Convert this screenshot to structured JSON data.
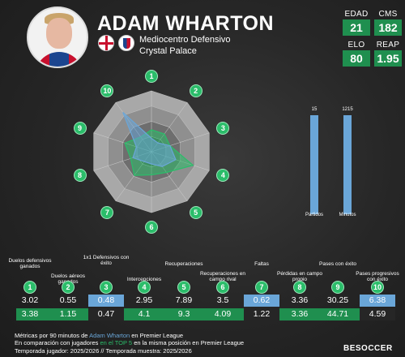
{
  "player": {
    "name": "ADAM WHARTON",
    "position": "Mediocentro Defensivo",
    "club": "Crystal Palace"
  },
  "header_stats": [
    {
      "label": "EDAD",
      "value": "21"
    },
    {
      "label": "CMS",
      "value": "182"
    },
    {
      "label": "ELO",
      "value": "80"
    },
    {
      "label": "REAP",
      "value": "1.95"
    }
  ],
  "radar": {
    "axes": [
      "1",
      "2",
      "3",
      "4",
      "5",
      "6",
      "7",
      "8",
      "9",
      "10"
    ],
    "player_values": [
      0.22,
      0.18,
      0.32,
      0.42,
      0.3,
      0.2,
      0.2,
      0.32,
      0.26,
      0.8
    ],
    "comparison_values": [
      0.36,
      0.36,
      0.32,
      0.72,
      0.42,
      0.38,
      0.48,
      0.36,
      0.46,
      0.3
    ],
    "colors": {
      "player": "#6aa6d8",
      "comparison": "#2bbd6a"
    }
  },
  "bars": [
    {
      "label": "Partidos",
      "value": "15"
    },
    {
      "label": "Minutos",
      "value": "1215"
    }
  ],
  "categories": [
    {
      "num": "1",
      "label": "Duelos defensivos ganados"
    },
    {
      "num": "2",
      "label": "Duelos aéreos ganados"
    },
    {
      "num": "3",
      "label": "1x1 Defensivos con éxito"
    },
    {
      "num": "4",
      "label": "Intercepciones"
    },
    {
      "num": "5",
      "label": "Recuperaciones"
    },
    {
      "num": "6",
      "label": "Recuperaciones en campo rival"
    },
    {
      "num": "7",
      "label": "Faltas"
    },
    {
      "num": "8",
      "label": "Pérdidas en campo propio"
    },
    {
      "num": "9",
      "label": "Pases con éxito"
    },
    {
      "num": "10",
      "label": "Pases progresivos con éxito"
    }
  ],
  "player_row": [
    "3.02",
    "0.55",
    "0.48",
    "2.95",
    "7.89",
    "3.5",
    "0.62",
    "3.36",
    "30.25",
    "6.38"
  ],
  "comparison_row": [
    "3.38",
    "1.15",
    "0.47",
    "4.1",
    "9.3",
    "4.09",
    "1.22",
    "3.36",
    "44.71",
    "4.59"
  ],
  "footer": {
    "line1_a": "Métricas por 90 minutos de ",
    "line1_name": "Adam Wharton",
    "line1_b": " en Premier League",
    "line2_a": "En comparación con jugadores ",
    "line2_hl": "en el TOP 5",
    "line2_b": " en la misma posición en Premier League",
    "line3": "Temporada jugador: 2025/2026 // Temporada muestra: 2025/2026"
  },
  "brand": "BESOCCER"
}
